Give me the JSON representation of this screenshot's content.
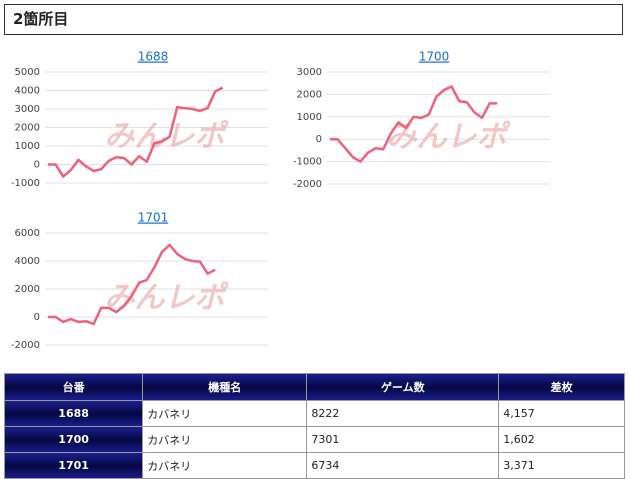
{
  "header": {
    "title": "2箇所目"
  },
  "watermark": "みんレポ",
  "chart_data": [
    {
      "type": "line",
      "title": "1688",
      "color": "#f0607a",
      "grid": true,
      "ylim": [
        -1000,
        5000
      ],
      "yticks": [
        -1000,
        0,
        1000,
        2000,
        3000,
        4000,
        5000
      ],
      "values": [
        0,
        0,
        -650,
        -300,
        250,
        -100,
        -350,
        -250,
        200,
        400,
        350,
        0,
        450,
        150,
        1150,
        1250,
        1500,
        3100,
        3050,
        3000,
        2900,
        3050,
        3950,
        4157
      ]
    },
    {
      "type": "line",
      "title": "1700",
      "color": "#f0607a",
      "grid": true,
      "ylim": [
        -2000,
        3000
      ],
      "yticks": [
        -2000,
        -1000,
        0,
        1000,
        2000,
        3000
      ],
      "values": [
        0,
        0,
        -400,
        -800,
        -1000,
        -600,
        -400,
        -450,
        250,
        750,
        500,
        1000,
        950,
        1100,
        1900,
        2200,
        2350,
        1700,
        1650,
        1200,
        950,
        1600,
        1602
      ]
    },
    {
      "type": "line",
      "title": "1701",
      "color": "#f0607a",
      "grid": true,
      "ylim": [
        -2000,
        6000
      ],
      "yticks": [
        -2000,
        0,
        2000,
        4000,
        6000
      ],
      "values": [
        0,
        0,
        -350,
        -150,
        -350,
        -300,
        -500,
        650,
        650,
        350,
        800,
        1500,
        2450,
        2650,
        3550,
        4650,
        5150,
        4500,
        4150,
        4000,
        3950,
        3100,
        3371
      ]
    }
  ],
  "table": {
    "header": [
      "台番",
      "機種名",
      "ゲーム数",
      "差枚"
    ],
    "rows": [
      [
        "1688",
        "カバネリ",
        "8222",
        "4,157"
      ],
      [
        "1700",
        "カバネリ",
        "7301",
        "1,602"
      ],
      [
        "1701",
        "カバネリ",
        "6734",
        "3,371"
      ]
    ]
  }
}
